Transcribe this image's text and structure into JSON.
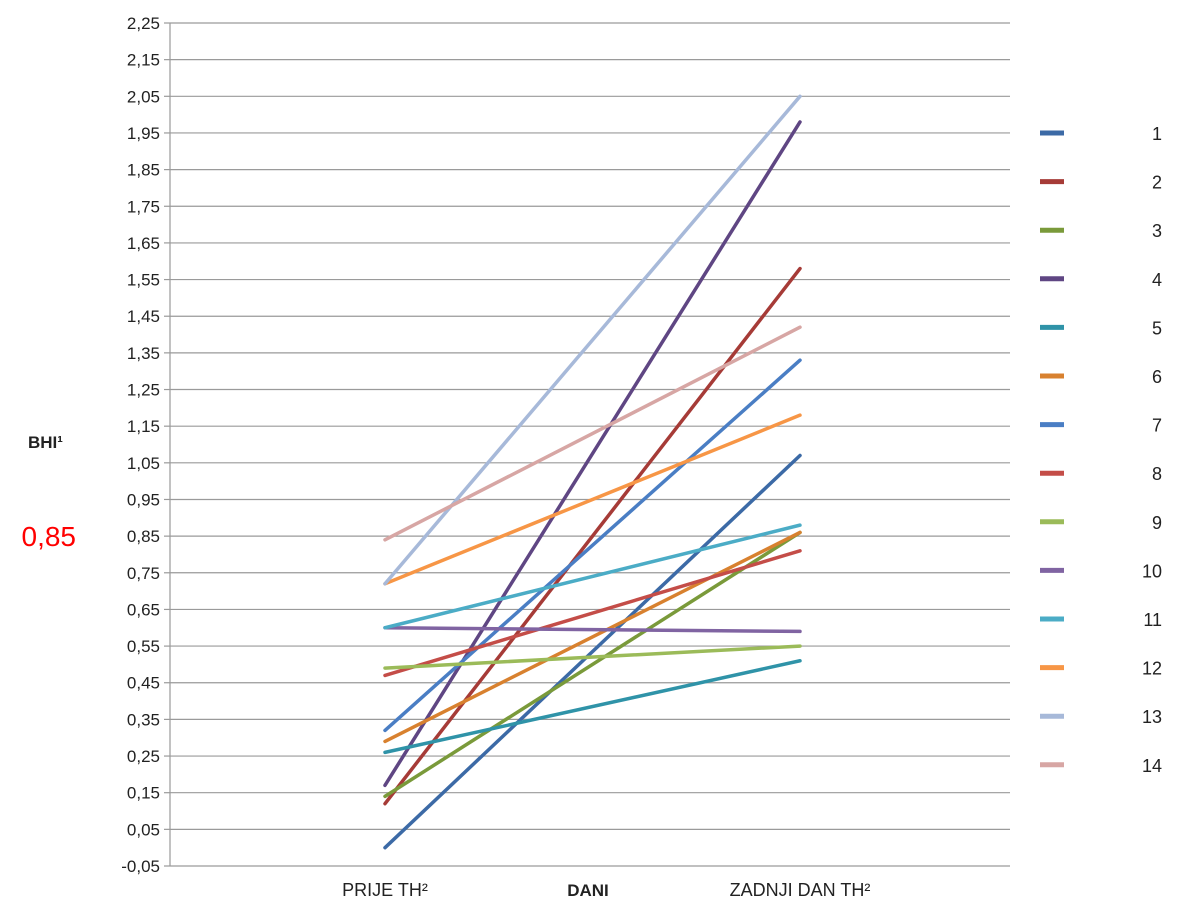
{
  "chart_data": {
    "type": "line",
    "ylabel": "BHI¹",
    "xlabel": "DANI",
    "categories": [
      "PRIJE TH²",
      "ZADNJI DAN TH²"
    ],
    "ylim": [
      -0.05,
      2.25
    ],
    "yticks": [
      "2,25",
      "2,15",
      "2,05",
      "1,95",
      "1,85",
      "1,75",
      "1,65",
      "1,55",
      "1,45",
      "1,35",
      "1,25",
      "1,15",
      "1,05",
      "0,95",
      "0,85",
      "0,75",
      "0,65",
      "0,55",
      "0,45",
      "0,35",
      "0,25",
      "0,15",
      "0,05",
      "-0,05"
    ],
    "ytick_values": [
      2.25,
      2.15,
      2.05,
      1.95,
      1.85,
      1.75,
      1.65,
      1.55,
      1.45,
      1.35,
      1.25,
      1.15,
      1.05,
      0.95,
      0.85,
      0.75,
      0.65,
      0.55,
      0.45,
      0.35,
      0.25,
      0.15,
      0.05,
      -0.05
    ],
    "highlight_label": "0,85",
    "highlight_value": 0.85,
    "grid": true,
    "legend_position": "right",
    "series": [
      {
        "name": "1",
        "color": "#3c6aa6",
        "values": [
          0.0,
          1.07
        ]
      },
      {
        "name": "2",
        "color": "#a63b37",
        "values": [
          0.12,
          1.58
        ]
      },
      {
        "name": "3",
        "color": "#7a9a3a",
        "values": [
          0.14,
          0.86
        ]
      },
      {
        "name": "4",
        "color": "#5f4683",
        "values": [
          0.17,
          1.98
        ]
      },
      {
        "name": "5",
        "color": "#2f93a8",
        "values": [
          0.26,
          0.51
        ]
      },
      {
        "name": "6",
        "color": "#d8812f",
        "values": [
          0.29,
          0.86
        ]
      },
      {
        "name": "7",
        "color": "#4a7ec4",
        "values": [
          0.32,
          1.33
        ]
      },
      {
        "name": "8",
        "color": "#c44d48",
        "values": [
          0.47,
          0.81
        ]
      },
      {
        "name": "9",
        "color": "#9bbb59",
        "values": [
          0.49,
          0.55
        ]
      },
      {
        "name": "10",
        "color": "#8064a2",
        "values": [
          0.6,
          0.59
        ]
      },
      {
        "name": "11",
        "color": "#4bacc6",
        "values": [
          0.6,
          0.88
        ]
      },
      {
        "name": "12",
        "color": "#f79646",
        "values": [
          0.72,
          1.18
        ]
      },
      {
        "name": "13",
        "color": "#a7b9d9",
        "values": [
          0.72,
          2.05
        ]
      },
      {
        "name": "14",
        "color": "#d7a6a4",
        "values": [
          0.84,
          1.42
        ]
      }
    ]
  }
}
